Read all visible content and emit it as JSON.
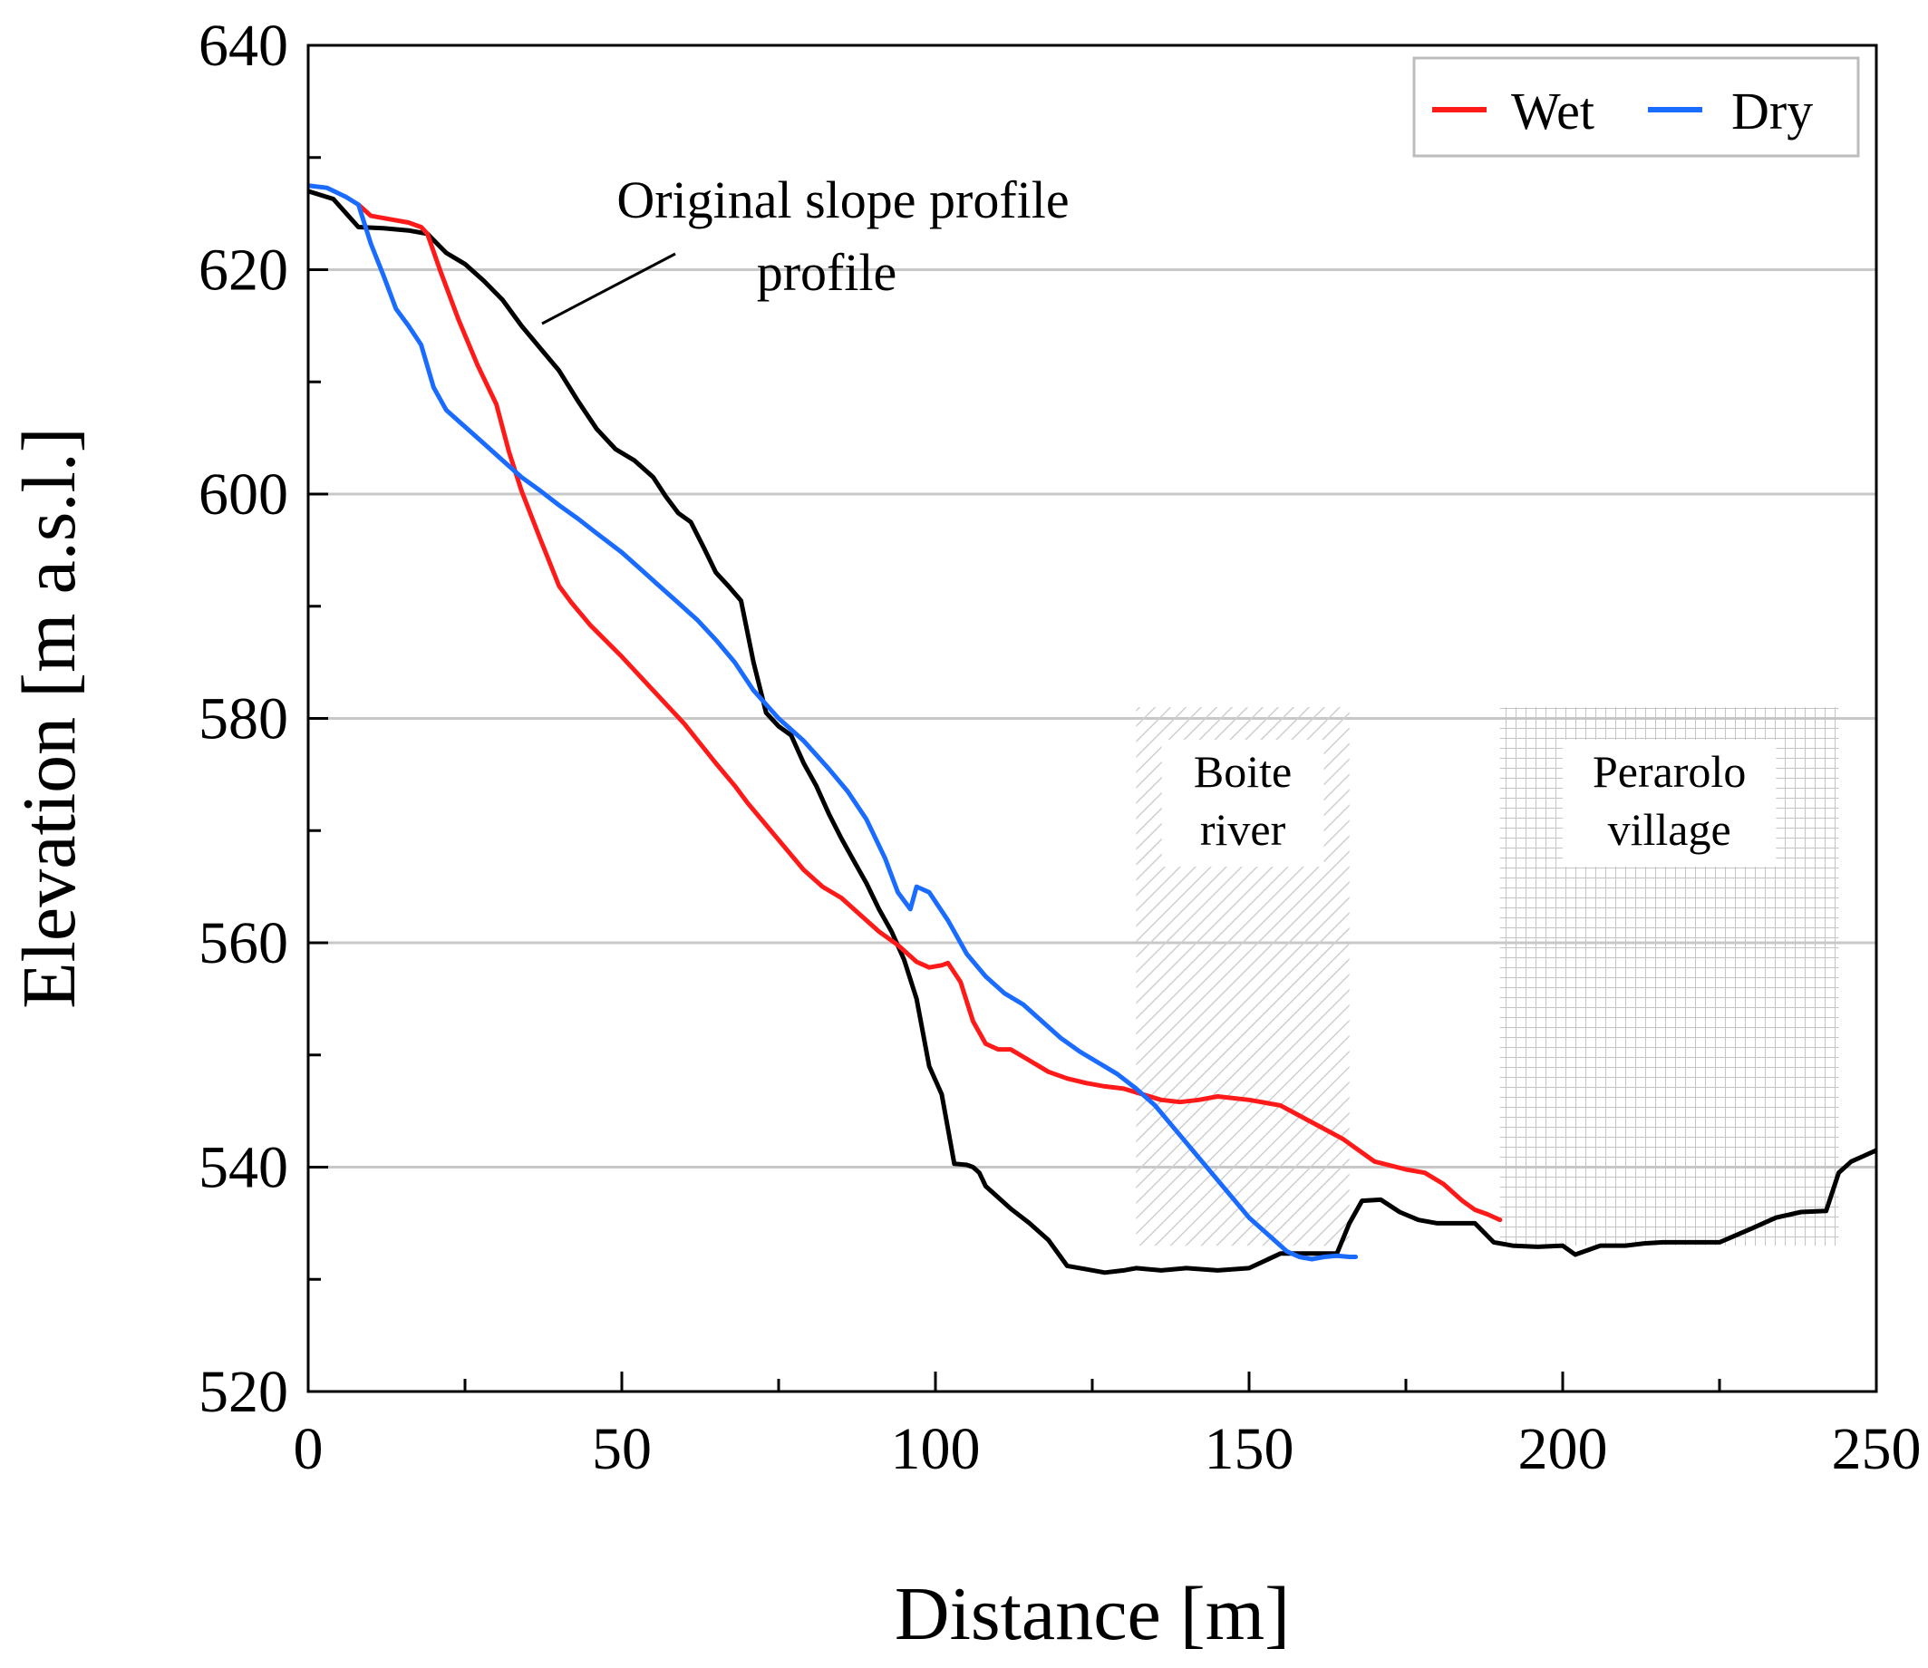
{
  "chart_data": {
    "type": "line",
    "title": "",
    "xlabel": "Distance [m]",
    "ylabel": "Elevation [m a.s.l.]",
    "xlim": [
      0,
      250
    ],
    "ylim": [
      520,
      640
    ],
    "xticks": [
      0,
      50,
      100,
      150,
      200,
      250
    ],
    "yticks": [
      520,
      540,
      560,
      580,
      600,
      620,
      640
    ],
    "gridlines_y": [
      540,
      560,
      580,
      600,
      620
    ],
    "legend": {
      "position": "top-right",
      "entries": [
        "Wet",
        "Dry"
      ]
    },
    "colors": {
      "Original slope profile": "#000000",
      "Wet": "#ff1a1a",
      "Dry": "#1a6bff",
      "grid": "#c8c8c8"
    },
    "series": [
      {
        "name": "Original slope profile",
        "x": [
          0,
          4,
          8,
          12,
          16,
          19,
          22,
          25,
          28,
          31,
          34,
          37,
          40,
          43,
          46,
          49,
          52,
          55,
          57,
          59,
          61,
          63,
          65,
          67,
          69,
          71,
          73,
          75,
          77,
          79,
          81,
          83,
          85,
          87,
          89,
          91,
          93,
          95,
          97,
          99,
          101,
          103,
          105,
          106,
          107,
          108,
          110,
          112,
          115,
          118,
          121,
          124,
          127,
          130,
          132,
          136,
          140,
          145,
          150,
          155,
          160,
          164,
          166,
          168,
          171,
          174,
          177,
          180,
          183,
          186,
          189,
          192,
          196,
          200,
          202,
          206,
          210,
          213,
          216,
          220,
          225,
          230,
          234,
          238,
          242,
          244,
          246,
          248,
          250
        ],
        "y": [
          627,
          626.3,
          623.8,
          623.7,
          623.5,
          623.2,
          621.5,
          620.5,
          619.0,
          617.3,
          615.0,
          613.0,
          611.0,
          608.3,
          605.8,
          604.0,
          603.0,
          601.5,
          599.8,
          598.3,
          597.5,
          595.3,
          593.0,
          591.8,
          590.5,
          585.0,
          580.5,
          579.3,
          578.5,
          576.0,
          574.0,
          571.5,
          569.3,
          567.3,
          565.3,
          563.0,
          561.0,
          558.5,
          555.0,
          549.0,
          546.5,
          540.3,
          540.2,
          540.0,
          539.5,
          538.3,
          537.3,
          536.3,
          535.0,
          533.5,
          531.2,
          530.9,
          530.6,
          530.8,
          531.0,
          530.8,
          531.0,
          530.8,
          531.0,
          532.3,
          532.3,
          532.3,
          535.0,
          537.0,
          537.1,
          536.0,
          535.3,
          535.0,
          535.0,
          535.0,
          533.3,
          533.0,
          532.9,
          533.0,
          532.2,
          533.0,
          533.0,
          533.2,
          533.3,
          533.3,
          533.3,
          534.5,
          535.5,
          536.0,
          536.1,
          539.5,
          540.5,
          541.0,
          541.5
        ]
      },
      {
        "name": "Wet",
        "x": [
          8,
          10,
          13,
          16,
          18,
          19,
          21,
          24,
          27,
          30,
          32,
          34,
          37,
          40,
          42,
          45,
          50,
          55,
          60,
          65,
          68,
          70,
          73,
          76,
          79,
          82,
          85,
          88,
          91,
          94,
          97,
          99,
          101,
          102,
          104,
          106,
          108,
          110,
          112,
          115,
          118,
          121,
          124,
          127,
          130,
          133,
          136,
          139,
          142,
          145,
          150,
          155,
          160,
          165,
          170,
          175,
          178,
          181,
          184,
          186,
          188,
          190
        ],
        "y": [
          625.8,
          624.8,
          624.5,
          624.2,
          623.8,
          623.2,
          620.0,
          615.5,
          611.5,
          608.0,
          603.8,
          600.3,
          596.0,
          591.8,
          590.3,
          588.3,
          585.5,
          582.5,
          579.5,
          576.0,
          574.0,
          572.5,
          570.5,
          568.5,
          566.5,
          565.0,
          564.0,
          562.5,
          561.0,
          559.8,
          558.3,
          557.8,
          558.0,
          558.2,
          556.5,
          553.0,
          551.0,
          550.5,
          550.5,
          549.5,
          548.5,
          547.9,
          547.5,
          547.2,
          547.0,
          546.5,
          546.0,
          545.8,
          546.0,
          546.3,
          546.0,
          545.5,
          544.0,
          542.5,
          540.5,
          539.8,
          539.5,
          538.5,
          537.0,
          536.2,
          535.8,
          535.3
        ]
      },
      {
        "name": "Dry",
        "x": [
          0,
          3,
          6,
          8,
          10,
          12,
          14,
          16,
          18,
          20,
          22,
          25,
          28,
          31,
          34,
          37,
          40,
          43,
          46,
          50,
          53,
          56,
          59,
          62,
          65,
          68,
          71,
          75,
          79,
          83,
          86,
          89,
          92,
          94,
          96,
          97,
          99,
          102,
          105,
          108,
          111,
          114,
          117,
          120,
          123,
          126,
          129,
          132,
          135,
          138,
          141,
          144,
          147,
          150,
          153,
          156,
          158,
          160,
          162,
          164,
          166,
          167
        ],
        "y": [
          627.5,
          627.3,
          626.5,
          625.8,
          622.3,
          619.5,
          616.5,
          615.0,
          613.3,
          609.5,
          607.5,
          606.0,
          604.5,
          603.0,
          601.5,
          600.3,
          599.0,
          597.8,
          596.5,
          594.8,
          593.3,
          591.8,
          590.3,
          588.8,
          587.0,
          585.0,
          582.5,
          580.0,
          578.0,
          575.5,
          573.5,
          571.0,
          567.5,
          564.5,
          563.0,
          565.0,
          564.5,
          562.0,
          559.0,
          557.0,
          555.5,
          554.5,
          553.0,
          551.5,
          550.3,
          549.3,
          548.3,
          547.0,
          545.5,
          543.5,
          541.5,
          539.5,
          537.5,
          535.5,
          534.0,
          532.5,
          532.0,
          531.8,
          532.0,
          532.1,
          532.0,
          532.0
        ]
      }
    ],
    "annotations": {
      "original_profile_label": [
        "Original slope profile",
        "profile"
      ],
      "zones": [
        {
          "name": "Boite river",
          "lines": [
            "Boite",
            "river"
          ],
          "x_range": [
            132,
            166
          ],
          "y_range": [
            533,
            581
          ],
          "pattern": "diagonal-hatch"
        },
        {
          "name": "Perarolo village",
          "lines": [
            "Perarolo",
            "village"
          ],
          "x_range": [
            190,
            244
          ],
          "y_range": [
            533,
            581
          ],
          "pattern": "grid"
        }
      ]
    }
  }
}
